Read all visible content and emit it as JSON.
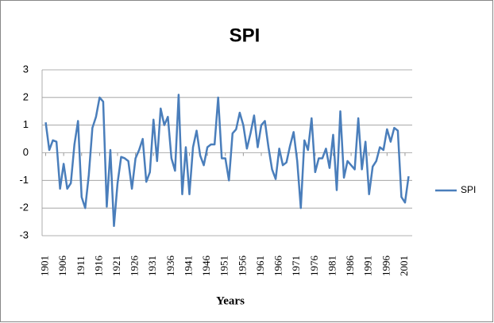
{
  "chart_data": {
    "type": "line",
    "title": "SPI",
    "xlabel": "Years",
    "x": [
      1901,
      1902,
      1903,
      1904,
      1905,
      1906,
      1907,
      1908,
      1909,
      1910,
      1911,
      1912,
      1913,
      1914,
      1915,
      1916,
      1917,
      1918,
      1919,
      1920,
      1921,
      1922,
      1923,
      1924,
      1925,
      1926,
      1927,
      1928,
      1929,
      1930,
      1931,
      1932,
      1933,
      1934,
      1935,
      1936,
      1937,
      1938,
      1939,
      1940,
      1941,
      1942,
      1943,
      1944,
      1945,
      1946,
      1947,
      1948,
      1949,
      1950,
      1951,
      1952,
      1953,
      1954,
      1955,
      1956,
      1957,
      1958,
      1959,
      1960,
      1961,
      1962,
      1963,
      1964,
      1965,
      1966,
      1967,
      1968,
      1969,
      1970,
      1971,
      1972,
      1973,
      1974,
      1975,
      1976,
      1977,
      1978,
      1979,
      1980,
      1981,
      1982,
      1983,
      1984,
      1985,
      1986,
      1987,
      1988,
      1989,
      1990,
      1991,
      1992,
      1993,
      1994,
      1995,
      1996,
      1997,
      1998,
      1999,
      2000,
      2001,
      2002
    ],
    "series": [
      {
        "name": "SPI",
        "color": "#4a7ebb",
        "values": [
          1.1,
          0.1,
          0.45,
          0.4,
          -1.3,
          -0.4,
          -1.3,
          -1.1,
          0.3,
          1.15,
          -1.6,
          -2.0,
          -0.8,
          0.9,
          1.3,
          2.0,
          1.85,
          -1.95,
          0.1,
          -2.65,
          -1.1,
          -0.15,
          -0.2,
          -0.3,
          -1.3,
          -0.2,
          0.1,
          0.5,
          -1.05,
          -0.7,
          1.2,
          -0.3,
          1.6,
          1.0,
          1.3,
          -0.2,
          -0.65,
          2.1,
          -1.5,
          0.2,
          -1.5,
          0.2,
          0.8,
          -0.1,
          -0.45,
          0.2,
          0.3,
          0.3,
          2.0,
          -0.2,
          -0.2,
          -1.0,
          0.7,
          0.85,
          1.45,
          1.0,
          0.15,
          0.7,
          1.35,
          0.2,
          1.0,
          1.15,
          0.2,
          -0.6,
          -0.95,
          0.15,
          -0.45,
          -0.35,
          0.25,
          0.75,
          -0.3,
          -2.0,
          0.45,
          0.1,
          1.25,
          -0.7,
          -0.2,
          -0.2,
          0.15,
          -0.55,
          0.65,
          -1.35,
          1.5,
          -0.9,
          -0.3,
          -0.45,
          -0.6,
          1.25,
          -0.6,
          0.4,
          -1.5,
          -0.5,
          -0.3,
          0.2,
          0.1,
          0.85,
          0.4,
          0.9,
          0.8,
          -1.6,
          -1.8,
          -0.85
        ]
      }
    ],
    "xlim": [
      1900,
      2003
    ],
    "xticks": [
      1901,
      1906,
      1911,
      1916,
      1921,
      1926,
      1931,
      1936,
      1941,
      1946,
      1951,
      1956,
      1961,
      1966,
      1971,
      1976,
      1981,
      1986,
      1991,
      1996,
      2001
    ],
    "ylim": [
      -3,
      3
    ],
    "yticks": [
      -3,
      -2,
      -1,
      0,
      1,
      2,
      3
    ],
    "grid": true,
    "legend": "right"
  }
}
